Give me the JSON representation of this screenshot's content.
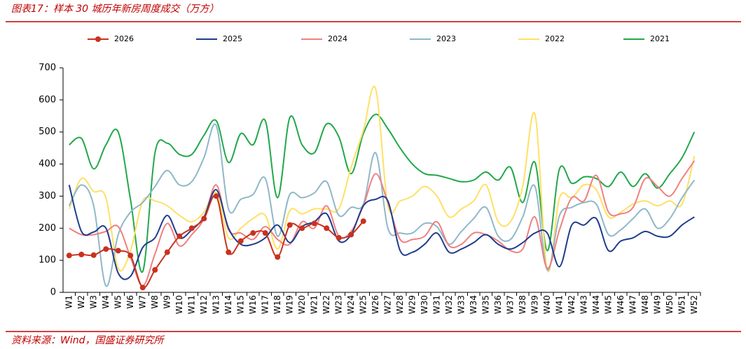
{
  "title": "图表17：样本 30 城历年新房周度成交（万方）",
  "source": "资料来源：Wind，国盛证券研究所",
  "chart_data": {
    "type": "line",
    "categories": [
      "W1",
      "W2",
      "W3",
      "W4",
      "W5",
      "W6",
      "W7",
      "W8",
      "W9",
      "W10",
      "W11",
      "W12",
      "W13",
      "W14",
      "W15",
      "W16",
      "W17",
      "W18",
      "W19",
      "W20",
      "W21",
      "W22",
      "W23",
      "W24",
      "W25",
      "W26",
      "W27",
      "W28",
      "W29",
      "W30",
      "W31",
      "W32",
      "W33",
      "W34",
      "W35",
      "W36",
      "W37",
      "W38",
      "W39",
      "W40",
      "W41",
      "W42",
      "W43",
      "W44",
      "W45",
      "W46",
      "W47",
      "W48",
      "W49",
      "W50",
      "W51",
      "W52"
    ],
    "ylim": [
      0,
      700
    ],
    "yticks": [
      0,
      100,
      200,
      300,
      400,
      500,
      600,
      700
    ],
    "series": [
      {
        "name": "2026",
        "color": "#c8321e",
        "marker": true,
        "values": [
          115,
          118,
          116,
          135,
          130,
          115,
          15,
          70,
          125,
          175,
          200,
          230,
          300,
          125,
          160,
          185,
          185,
          110,
          210,
          200,
          215,
          200,
          170,
          180,
          222,
          null,
          null,
          null,
          null,
          null,
          null,
          null,
          null,
          null,
          null,
          null,
          null,
          null,
          null,
          null,
          null,
          null,
          null,
          null,
          null,
          null,
          null,
          null,
          null,
          null,
          null,
          null
        ]
      },
      {
        "name": "2025",
        "color": "#1f3d8c",
        "values": [
          335,
          190,
          188,
          200,
          60,
          50,
          140,
          170,
          240,
          170,
          195,
          235,
          320,
          200,
          150,
          150,
          170,
          210,
          155,
          205,
          220,
          245,
          160,
          180,
          270,
          290,
          285,
          130,
          125,
          150,
          185,
          125,
          135,
          155,
          180,
          150,
          135,
          155,
          185,
          185,
          80,
          210,
          210,
          230,
          130,
          160,
          170,
          190,
          175,
          175,
          210,
          235
        ]
      },
      {
        "name": "2024",
        "color": "#f08080",
        "values": [
          200,
          180,
          180,
          190,
          205,
          110,
          20,
          120,
          215,
          145,
          180,
          230,
          335,
          195,
          185,
          165,
          205,
          165,
          150,
          220,
          200,
          270,
          175,
          190,
          270,
          370,
          280,
          165,
          165,
          175,
          220,
          145,
          150,
          185,
          180,
          160,
          130,
          135,
          235,
          75,
          195,
          295,
          285,
          365,
          250,
          245,
          265,
          355,
          330,
          300,
          355,
          410
        ]
      },
      {
        "name": "2023",
        "color": "#8fb8c8",
        "values": [
          270,
          335,
          270,
          20,
          180,
          250,
          280,
          330,
          380,
          335,
          345,
          420,
          520,
          260,
          290,
          305,
          355,
          175,
          305,
          295,
          310,
          345,
          240,
          265,
          275,
          435,
          200,
          185,
          185,
          215,
          205,
          150,
          190,
          230,
          265,
          175,
          165,
          235,
          330,
          70,
          240,
          265,
          280,
          275,
          180,
          195,
          230,
          260,
          200,
          230,
          295,
          350
        ]
      },
      {
        "name": "2022",
        "color": "#ffe066",
        "values": [
          260,
          355,
          315,
          295,
          75,
          130,
          285,
          285,
          270,
          240,
          220,
          250,
          310,
          170,
          200,
          230,
          240,
          135,
          255,
          245,
          260,
          260,
          260,
          390,
          505,
          635,
          270,
          285,
          300,
          330,
          300,
          235,
          260,
          285,
          335,
          220,
          220,
          330,
          555,
          70,
          295,
          295,
          335,
          320,
          235,
          250,
          275,
          285,
          270,
          285,
          275,
          425
        ]
      },
      {
        "name": "2021",
        "color": "#22a84a",
        "values": [
          460,
          480,
          385,
          460,
          500,
          290,
          65,
          435,
          465,
          430,
          430,
          490,
          535,
          405,
          495,
          460,
          535,
          295,
          545,
          460,
          435,
          525,
          485,
          370,
          495,
          555,
          510,
          450,
          400,
          370,
          365,
          355,
          345,
          350,
          375,
          350,
          390,
          280,
          405,
          130,
          385,
          340,
          360,
          355,
          330,
          375,
          330,
          370,
          325,
          370,
          420,
          500
        ]
      }
    ]
  }
}
